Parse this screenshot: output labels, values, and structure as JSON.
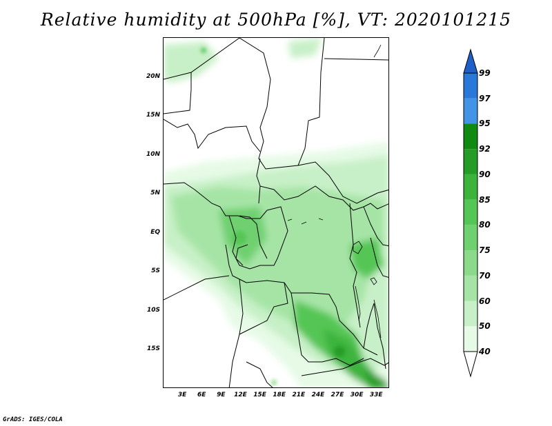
{
  "title": "Relative humidity at 500hPa [%], VT: 2020101215",
  "credit": "GrADS: IGES/COLA",
  "map": {
    "lat_labels": [
      "20N",
      "15N",
      "10N",
      "5N",
      "EQ",
      "5S",
      "10S",
      "15S"
    ],
    "lat_values": [
      20,
      15,
      10,
      5,
      0,
      -5,
      -10,
      -15
    ],
    "lon_labels": [
      "3E",
      "6E",
      "9E",
      "12E",
      "15E",
      "18E",
      "21E",
      "24E",
      "27E",
      "30E",
      "33E"
    ],
    "lon_values": [
      3,
      6,
      9,
      12,
      15,
      18,
      21,
      24,
      27,
      30,
      33
    ],
    "lon_range": [
      0,
      35
    ],
    "lat_range": [
      -20,
      25
    ]
  },
  "colorbar": {
    "levels": [
      "40",
      "50",
      "60",
      "70",
      "75",
      "80",
      "85",
      "90",
      "92",
      "95",
      "97",
      "99"
    ],
    "colors": [
      "#ffffff",
      "#e6fae6",
      "#c8f0c8",
      "#a6e4a6",
      "#8ada8a",
      "#6fd06f",
      "#55c655",
      "#3cb43c",
      "#259c25",
      "#118a11",
      "#4494e6",
      "#2a78d8",
      "#1e5fc8"
    ]
  }
}
